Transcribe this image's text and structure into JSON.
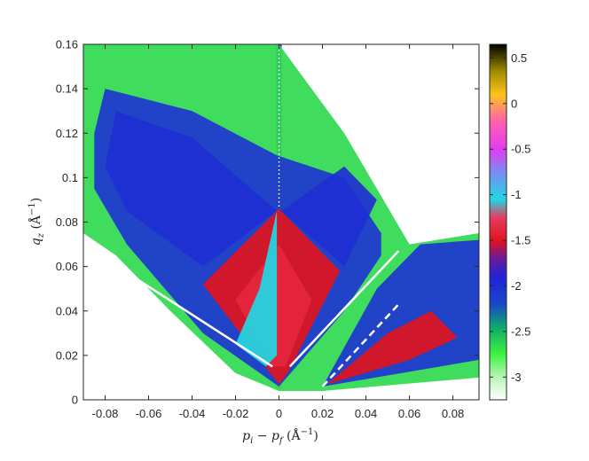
{
  "chart_data": {
    "type": "heatmap",
    "title": "",
    "xlabel_parts": [
      "p",
      "i",
      " − ",
      "p",
      "f",
      " (Å",
      "−1",
      ")"
    ],
    "ylabel_parts": [
      "q",
      "z",
      " (Å",
      "−1",
      ")"
    ],
    "xlim": [
      -0.09,
      0.092
    ],
    "ylim": [
      0,
      0.16
    ],
    "xticks": [
      -0.08,
      -0.06,
      -0.04,
      -0.02,
      0,
      0.02,
      0.04,
      0.06,
      0.08
    ],
    "xtick_labels": [
      "-0.08",
      "-0.06",
      "-0.04",
      "-0.02",
      "0",
      "0.02",
      "0.04",
      "0.06",
      "0.08"
    ],
    "yticks": [
      0,
      0.02,
      0.04,
      0.06,
      0.08,
      0.1,
      0.12,
      0.14,
      0.16
    ],
    "ytick_labels": [
      "0",
      "0.02",
      "0.04",
      "0.06",
      "0.08",
      "0.1",
      "0.12",
      "0.14",
      "0.16"
    ],
    "colorbar": {
      "range": [
        -3.25,
        0.65
      ],
      "ticks": [
        0.5,
        0,
        -0.5,
        -1,
        -1.5,
        -2,
        -2.5,
        -3
      ],
      "tick_labels": [
        "0.5",
        "0",
        "-0.5",
        "-1",
        "-1.5",
        "-2",
        "-2.5",
        "-3"
      ],
      "stops": [
        {
          "v": -3.25,
          "color": "#ffffff"
        },
        {
          "v": -3.0,
          "color": "#b8f5b8"
        },
        {
          "v": -2.75,
          "color": "#3ff23f"
        },
        {
          "v": -2.45,
          "color": "#0ea86e"
        },
        {
          "v": -2.2,
          "color": "#1848c8"
        },
        {
          "v": -1.9,
          "color": "#2222d8"
        },
        {
          "v": -1.7,
          "color": "#6a1a9a"
        },
        {
          "v": -1.5,
          "color": "#e0141e"
        },
        {
          "v": -1.25,
          "color": "#e83a60"
        },
        {
          "v": -1.05,
          "color": "#20d8e6"
        },
        {
          "v": -0.75,
          "color": "#7a8cf2"
        },
        {
          "v": -0.5,
          "color": "#e23cf0"
        },
        {
          "v": -0.2,
          "color": "#ff60b0"
        },
        {
          "v": 0.1,
          "color": "#ffc21a"
        },
        {
          "v": 0.35,
          "color": "#a08c00"
        },
        {
          "v": 0.65,
          "color": "#000000"
        }
      ]
    },
    "overlay_lines": [
      {
        "style": "solid",
        "points": [
          [
            -0.087,
            0.068
          ],
          [
            -0.003,
            0.015
          ]
        ]
      },
      {
        "style": "solid",
        "points": [
          [
            0.005,
            0.015
          ],
          [
            0.055,
            0.067
          ]
        ]
      },
      {
        "style": "dashed",
        "points": [
          [
            0.02,
            0.006
          ],
          [
            0.055,
            0.043
          ]
        ]
      },
      {
        "style": "dotted",
        "points": [
          [
            0,
            0.087
          ],
          [
            0,
            0.16
          ]
        ]
      }
    ],
    "regions": [
      {
        "name": "specular-rod",
        "level": 0.3,
        "points": [
          [
            -0.0012,
            0.005
          ],
          [
            0.0012,
            0.005
          ],
          [
            0.0012,
            0.085
          ],
          [
            -0.0012,
            0.085
          ]
        ]
      },
      {
        "name": "upper-rod",
        "level": -1.9,
        "points": [
          [
            -0.0012,
            0.085
          ],
          [
            0.0012,
            0.085
          ],
          [
            0.0012,
            0.16
          ],
          [
            -0.0012,
            0.16
          ]
        ]
      },
      {
        "name": "background-green",
        "level": -2.65,
        "points": [
          [
            -0.09,
            0.125
          ],
          [
            -0.09,
            0.16
          ],
          [
            0.0,
            0.16
          ],
          [
            0.03,
            0.12
          ],
          [
            0.045,
            0.095
          ],
          [
            0.06,
            0.07
          ],
          [
            0.092,
            0.075
          ],
          [
            0.092,
            0.01
          ],
          [
            0.02,
            0.004
          ],
          [
            0.0,
            0.004
          ],
          [
            -0.02,
            0.012
          ],
          [
            -0.05,
            0.04
          ],
          [
            -0.075,
            0.065
          ],
          [
            -0.09,
            0.075
          ]
        ]
      },
      {
        "name": "blue-envelope",
        "level": -2.05,
        "points": [
          [
            -0.08,
            0.14
          ],
          [
            -0.04,
            0.13
          ],
          [
            -0.001,
            0.11
          ],
          [
            0.03,
            0.1
          ],
          [
            0.047,
            0.075
          ],
          [
            0.047,
            0.065
          ],
          [
            0.03,
            0.04
          ],
          [
            0.0,
            0.006
          ],
          [
            -0.035,
            0.03
          ],
          [
            -0.07,
            0.07
          ],
          [
            -0.085,
            0.095
          ],
          [
            -0.085,
            0.12
          ]
        ]
      },
      {
        "name": "left-lobe",
        "level": -2.0,
        "points": [
          [
            -0.075,
            0.13
          ],
          [
            -0.04,
            0.118
          ],
          [
            -0.001,
            0.085
          ],
          [
            -0.035,
            0.06
          ],
          [
            -0.07,
            0.085
          ],
          [
            -0.08,
            0.105
          ]
        ]
      },
      {
        "name": "right-lobe",
        "level": -2.0,
        "points": [
          [
            0.001,
            0.085
          ],
          [
            0.03,
            0.105
          ],
          [
            0.045,
            0.09
          ],
          [
            0.03,
            0.06
          ]
        ]
      },
      {
        "name": "central-diamond",
        "level": -1.5,
        "points": [
          [
            0.0,
            0.086
          ],
          [
            0.028,
            0.058
          ],
          [
            0.004,
            0.012
          ],
          [
            0.0,
            0.007
          ],
          [
            -0.004,
            0.012
          ],
          [
            -0.035,
            0.052
          ]
        ]
      },
      {
        "name": "diamond-core",
        "level": -1.38,
        "points": [
          [
            0.0,
            0.07
          ],
          [
            0.015,
            0.045
          ],
          [
            0.003,
            0.015
          ],
          [
            -0.003,
            0.015
          ],
          [
            -0.02,
            0.045
          ]
        ]
      },
      {
        "name": "cyan-plume",
        "level": -1.05,
        "points": [
          [
            -0.001,
            0.085
          ],
          [
            -0.001,
            0.02
          ],
          [
            -0.006,
            0.015
          ],
          [
            -0.02,
            0.025
          ],
          [
            -0.009,
            0.05
          ]
        ]
      },
      {
        "name": "right-band",
        "level": -2.05,
        "points": [
          [
            0.02,
            0.006
          ],
          [
            0.045,
            0.05
          ],
          [
            0.065,
            0.07
          ],
          [
            0.092,
            0.072
          ],
          [
            0.092,
            0.018
          ]
        ]
      },
      {
        "name": "right-band-red",
        "level": -1.5,
        "points": [
          [
            0.022,
            0.007
          ],
          [
            0.05,
            0.03
          ],
          [
            0.07,
            0.04
          ],
          [
            0.082,
            0.028
          ],
          [
            0.06,
            0.018
          ]
        ]
      }
    ]
  }
}
